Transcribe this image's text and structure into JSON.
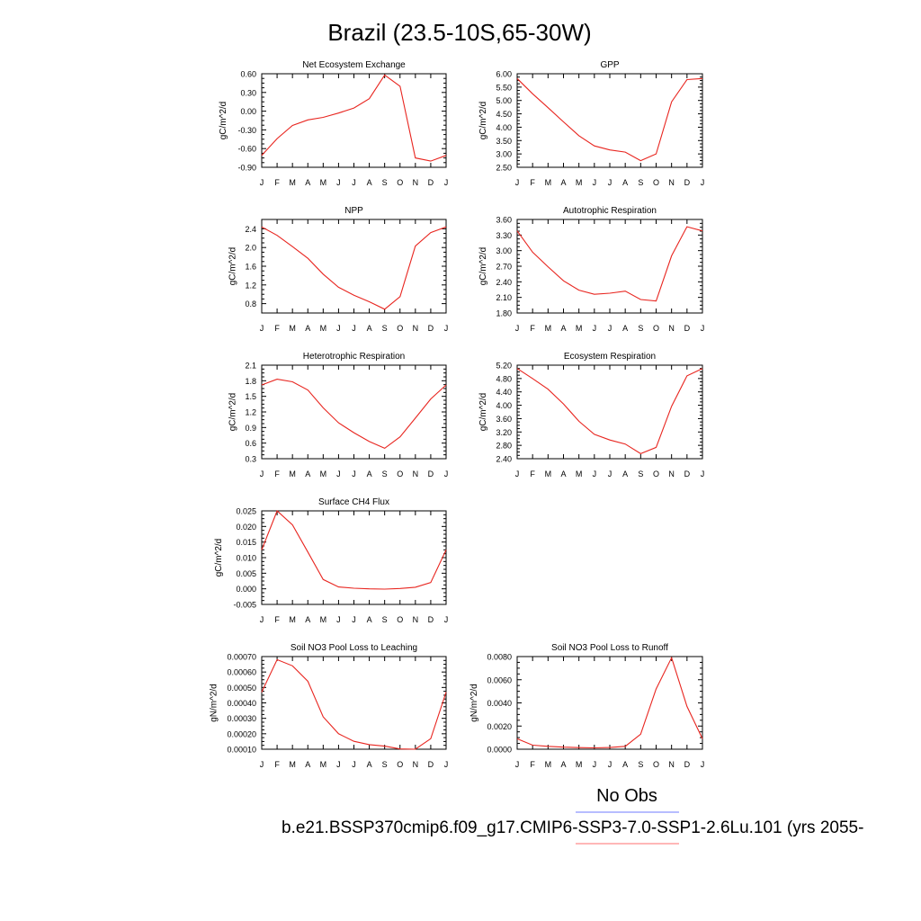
{
  "figure": {
    "title": "Brazil (23.5-10S,65-30W)",
    "legend": {
      "obs_label": "No Obs",
      "obs_color": "#6f7bff",
      "case_label": "b.e21.BSSP370cmip6.f09_g17.CMIP6-SSP3-7.0-SSP1-2.6Lu.101 (yrs 2055-",
      "case_color": "#ff6f6f"
    }
  },
  "chart_data": [
    {
      "type": "line",
      "title": "Net Ecosystem Exchange",
      "ylabel": "gC/m^2/d",
      "ylim": [
        -0.9,
        0.6
      ],
      "yticks": [
        "0.60",
        "0.30",
        "0.00",
        "-0.30",
        "-0.60",
        "-0.90"
      ],
      "ytick_values": [
        0.6,
        0.3,
        0.0,
        -0.3,
        -0.6,
        -0.9
      ],
      "months": [
        "J",
        "F",
        "M",
        "A",
        "M",
        "J",
        "J",
        "A",
        "S",
        "O",
        "N",
        "D",
        "J"
      ],
      "series": [
        {
          "values": [
            -0.71,
            -0.44,
            -0.23,
            -0.14,
            -0.1,
            -0.03,
            0.05,
            0.2,
            0.58,
            0.4,
            -0.75,
            -0.8,
            -0.71
          ]
        }
      ]
    },
    {
      "type": "line",
      "title": "GPP",
      "ylabel": "gC/m^2/d",
      "ylim": [
        2.5,
        6.0
      ],
      "yticks": [
        "6.00",
        "5.50",
        "5.00",
        "4.50",
        "4.00",
        "3.50",
        "3.00",
        "2.50"
      ],
      "ytick_values": [
        6.0,
        5.5,
        5.0,
        4.5,
        4.0,
        3.5,
        3.0,
        2.5
      ],
      "months": [
        "J",
        "F",
        "M",
        "A",
        "M",
        "J",
        "J",
        "A",
        "S",
        "O",
        "N",
        "D",
        "J"
      ],
      "series": [
        {
          "values": [
            5.82,
            5.25,
            4.73,
            4.2,
            3.68,
            3.3,
            3.15,
            3.07,
            2.75,
            3.0,
            4.95,
            5.78,
            5.82
          ]
        }
      ]
    },
    {
      "type": "line",
      "title": "NPP",
      "ylabel": "gC/m^2/d",
      "ylim": [
        0.6,
        2.6
      ],
      "yticks": [
        "2.4",
        "2.0",
        "1.6",
        "1.2",
        "0.8"
      ],
      "ytick_values": [
        2.4,
        2.0,
        1.6,
        1.2,
        0.8
      ],
      "months": [
        "J",
        "F",
        "M",
        "A",
        "M",
        "J",
        "J",
        "A",
        "S",
        "O",
        "N",
        "D",
        "J"
      ],
      "series": [
        {
          "values": [
            2.44,
            2.26,
            2.02,
            1.77,
            1.43,
            1.15,
            0.98,
            0.84,
            0.68,
            0.95,
            2.03,
            2.32,
            2.44
          ]
        }
      ]
    },
    {
      "type": "line",
      "title": "Autotrophic Respiration",
      "ylabel": "gC/m^2/d",
      "ylim": [
        1.8,
        3.6
      ],
      "yticks": [
        "3.60",
        "3.30",
        "3.00",
        "2.70",
        "2.40",
        "2.10",
        "1.80"
      ],
      "ytick_values": [
        3.6,
        3.3,
        3.0,
        2.7,
        2.4,
        2.1,
        1.8
      ],
      "months": [
        "J",
        "F",
        "M",
        "A",
        "M",
        "J",
        "J",
        "A",
        "S",
        "O",
        "N",
        "D",
        "J"
      ],
      "series": [
        {
          "values": [
            3.38,
            2.97,
            2.69,
            2.42,
            2.24,
            2.16,
            2.18,
            2.22,
            2.06,
            2.03,
            2.9,
            3.46,
            3.38
          ]
        }
      ]
    },
    {
      "type": "line",
      "title": "Heterotrophic Respiration",
      "ylabel": "gC/m^2/d",
      "ylim": [
        0.3,
        2.1
      ],
      "yticks": [
        "2.1",
        "1.8",
        "1.5",
        "1.2",
        "0.9",
        "0.6",
        "0.3"
      ],
      "ytick_values": [
        2.1,
        1.8,
        1.5,
        1.2,
        0.9,
        0.6,
        0.3
      ],
      "months": [
        "J",
        "F",
        "M",
        "A",
        "M",
        "J",
        "J",
        "A",
        "S",
        "O",
        "N",
        "D",
        "J"
      ],
      "series": [
        {
          "values": [
            1.72,
            1.83,
            1.78,
            1.62,
            1.28,
            0.99,
            0.8,
            0.63,
            0.5,
            0.72,
            1.08,
            1.45,
            1.72
          ]
        }
      ]
    },
    {
      "type": "line",
      "title": "Ecosystem Respiration",
      "ylabel": "gC/m^2/d",
      "ylim": [
        2.4,
        5.2
      ],
      "yticks": [
        "5.20",
        "4.80",
        "4.40",
        "4.00",
        "3.60",
        "3.20",
        "2.80",
        "2.40"
      ],
      "ytick_values": [
        5.2,
        4.8,
        4.4,
        4.0,
        3.6,
        3.2,
        2.8,
        2.4
      ],
      "months": [
        "J",
        "F",
        "M",
        "A",
        "M",
        "J",
        "J",
        "A",
        "S",
        "O",
        "N",
        "D",
        "J"
      ],
      "series": [
        {
          "values": [
            5.1,
            4.8,
            4.48,
            4.04,
            3.52,
            3.13,
            2.96,
            2.84,
            2.55,
            2.74,
            3.97,
            4.88,
            5.1
          ]
        }
      ]
    },
    {
      "type": "line",
      "title": "Surface CH4 Flux",
      "ylabel": "gC/m^2/d",
      "ylim": [
        -0.005,
        0.025
      ],
      "yticks": [
        "0.025",
        "0.020",
        "0.015",
        "0.010",
        "0.005",
        "0.000",
        "-0.005"
      ],
      "ytick_values": [
        0.025,
        0.02,
        0.015,
        0.01,
        0.005,
        0.0,
        -0.005
      ],
      "months": [
        "J",
        "F",
        "M",
        "A",
        "M",
        "J",
        "J",
        "A",
        "S",
        "O",
        "N",
        "D",
        "J"
      ],
      "series": [
        {
          "values": [
            0.0125,
            0.025,
            0.0205,
            0.0118,
            0.003,
            0.0006,
            0.0002,
            0.0,
            -0.0001,
            0.0001,
            0.0005,
            0.002,
            0.0125
          ]
        }
      ]
    },
    {
      "type": "line",
      "title": "Soil NO3 Pool Loss to Leaching",
      "ylabel": "gN/m^2/d",
      "ylim": [
        0.0001,
        0.0007
      ],
      "yticks": [
        "0.00070",
        "0.00060",
        "0.00050",
        "0.00040",
        "0.00030",
        "0.00020",
        "0.00010"
      ],
      "ytick_values": [
        0.0007,
        0.0006,
        0.0005,
        0.0004,
        0.0003,
        0.0002,
        0.0001
      ],
      "months": [
        "J",
        "F",
        "M",
        "A",
        "M",
        "J",
        "J",
        "A",
        "S",
        "O",
        "N",
        "D",
        "J"
      ],
      "series": [
        {
          "values": [
            0.00047,
            0.00068,
            0.00064,
            0.00054,
            0.00031,
            0.0002,
            0.000151,
            0.00013,
            0.00012,
            0.000102,
            0.0001,
            0.000168,
            0.00047
          ]
        }
      ]
    },
    {
      "type": "line",
      "title": "Soil NO3 Pool Loss to Runoff",
      "ylabel": "gN/m^2/d",
      "ylim": [
        0.0,
        0.008
      ],
      "yticks": [
        "0.0080",
        "0.0060",
        "0.0040",
        "0.0020",
        "0.0000"
      ],
      "ytick_values": [
        0.008,
        0.006,
        0.004,
        0.002,
        0.0
      ],
      "months": [
        "J",
        "F",
        "M",
        "A",
        "M",
        "J",
        "J",
        "A",
        "S",
        "O",
        "N",
        "D",
        "J"
      ],
      "series": [
        {
          "values": [
            0.0009,
            0.00035,
            0.00025,
            0.00018,
            0.00014,
            0.00012,
            0.00015,
            0.00025,
            0.0013,
            0.0052,
            0.0079,
            0.0037,
            0.0009
          ]
        }
      ]
    }
  ]
}
